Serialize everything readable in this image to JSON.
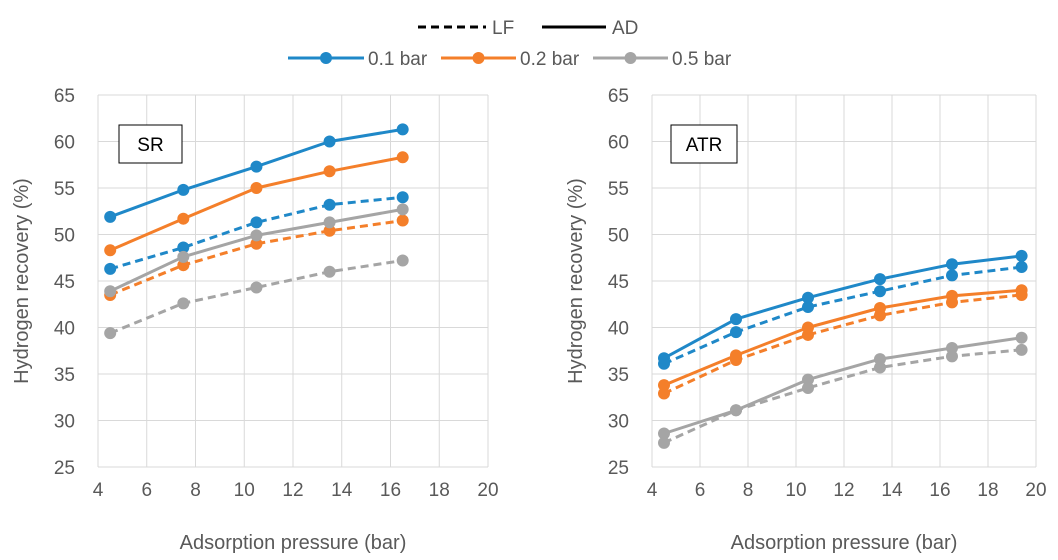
{
  "legend": {
    "line_styles": [
      {
        "label": "LF",
        "dash": true
      },
      {
        "label": "AD",
        "dash": false
      }
    ],
    "series": [
      {
        "label": "0.1 bar",
        "color": "#1F88C8"
      },
      {
        "label": "0.2 bar",
        "color": "#F47F2A"
      },
      {
        "label": "0.5 bar",
        "color": "#A5A5A5"
      }
    ]
  },
  "chart_data": [
    {
      "type": "line",
      "panel_label": "SR",
      "xlabel": "Adsorption pressure (bar)",
      "ylabel": "Hydrogen recovery (%)",
      "xlim": [
        4,
        20
      ],
      "ylim": [
        25,
        65
      ],
      "xticks": [
        4,
        6,
        8,
        10,
        12,
        14,
        16,
        18,
        20
      ],
      "yticks": [
        25,
        30,
        35,
        40,
        45,
        50,
        55,
        60,
        65
      ],
      "grid": true,
      "x": [
        4.5,
        7.5,
        10.5,
        13.5,
        16.5
      ],
      "series": [
        {
          "name": "0.1 bar",
          "mode": "AD",
          "color": "#1F88C8",
          "values": [
            51.9,
            54.8,
            57.3,
            60.0,
            61.3
          ]
        },
        {
          "name": "0.1 bar",
          "mode": "LF",
          "color": "#1F88C8",
          "values": [
            46.3,
            48.6,
            51.3,
            53.2,
            54.0
          ]
        },
        {
          "name": "0.2 bar",
          "mode": "AD",
          "color": "#F47F2A",
          "values": [
            48.3,
            51.7,
            55.0,
            56.8,
            58.3
          ]
        },
        {
          "name": "0.2 bar",
          "mode": "LF",
          "color": "#F47F2A",
          "values": [
            43.5,
            46.7,
            49.0,
            50.4,
            51.5
          ]
        },
        {
          "name": "0.5 bar",
          "mode": "AD",
          "color": "#A5A5A5",
          "values": [
            43.9,
            47.6,
            49.9,
            51.3,
            52.7
          ]
        },
        {
          "name": "0.5 bar",
          "mode": "LF",
          "color": "#A5A5A5",
          "values": [
            39.4,
            42.6,
            44.3,
            46.0,
            47.2
          ]
        }
      ]
    },
    {
      "type": "line",
      "panel_label": "ATR",
      "xlabel": "Adsorption pressure (bar)",
      "ylabel": "Hydrogen recovery (%)",
      "xlim": [
        4,
        20
      ],
      "ylim": [
        25,
        65
      ],
      "xticks": [
        4,
        6,
        8,
        10,
        12,
        14,
        16,
        18,
        20
      ],
      "yticks": [
        25,
        30,
        35,
        40,
        45,
        50,
        55,
        60,
        65
      ],
      "grid": true,
      "x": [
        4.5,
        7.5,
        10.5,
        13.5,
        16.5,
        19.4
      ],
      "series": [
        {
          "name": "0.1 bar",
          "mode": "AD",
          "color": "#1F88C8",
          "values": [
            36.7,
            40.9,
            43.2,
            45.2,
            46.8,
            47.7
          ]
        },
        {
          "name": "0.1 bar",
          "mode": "LF",
          "color": "#1F88C8",
          "values": [
            36.1,
            39.5,
            42.2,
            43.9,
            45.6,
            46.5
          ]
        },
        {
          "name": "0.2 bar",
          "mode": "AD",
          "color": "#F47F2A",
          "values": [
            33.8,
            37.0,
            40.0,
            42.1,
            43.4,
            44.0
          ]
        },
        {
          "name": "0.2 bar",
          "mode": "LF",
          "color": "#F47F2A",
          "values": [
            32.9,
            36.5,
            39.2,
            41.3,
            42.7,
            43.5
          ]
        },
        {
          "name": "0.5 bar",
          "mode": "AD",
          "color": "#A5A5A5",
          "values": [
            28.6,
            31.1,
            34.4,
            36.6,
            37.8,
            38.9
          ]
        },
        {
          "name": "0.5 bar",
          "mode": "LF",
          "color": "#A5A5A5",
          "values": [
            27.6,
            31.1,
            33.5,
            35.7,
            36.9,
            37.6
          ]
        }
      ]
    }
  ]
}
